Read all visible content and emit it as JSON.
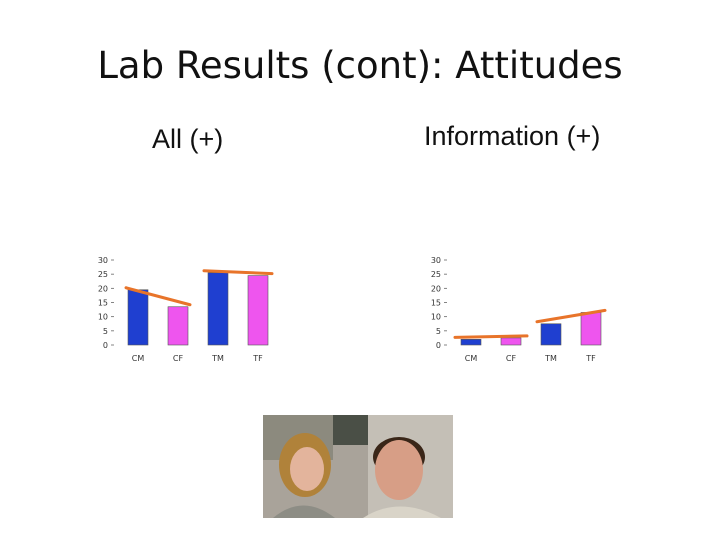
{
  "slide": {
    "title": "Lab Results (cont): Attitudes",
    "left_label": "All (+)",
    "right_label": "Information (+)"
  },
  "colors": {
    "blue_bar": "#1f3fd0",
    "pink_bar": "#ee55ee",
    "trend_line": "#e8742a"
  },
  "chart_data": [
    {
      "type": "bar",
      "categories": [
        "CM",
        "CF",
        "TM",
        "TF"
      ],
      "values": [
        19.5,
        13.5,
        25.5,
        24.5
      ],
      "ylim": [
        0,
        30
      ],
      "yticks": [
        "30",
        "25",
        "20",
        "15",
        "10",
        "5",
        "0"
      ],
      "bar_colors": [
        "#1f3fd0",
        "#ee55ee",
        "#1f3fd0",
        "#ee55ee"
      ]
    },
    {
      "type": "bar",
      "categories": [
        "CM",
        "CF",
        "TM",
        "TF"
      ],
      "values": [
        2,
        2.5,
        7.5,
        11.5
      ],
      "ylim": [
        0,
        30
      ],
      "yticks": [
        "30",
        "25",
        "20",
        "15",
        "10",
        "5",
        "0"
      ],
      "bar_colors": [
        "#1f3fd0",
        "#ee55ee",
        "#1f3fd0",
        "#ee55ee"
      ]
    }
  ],
  "photo": {
    "icon": "two-people-photo"
  }
}
